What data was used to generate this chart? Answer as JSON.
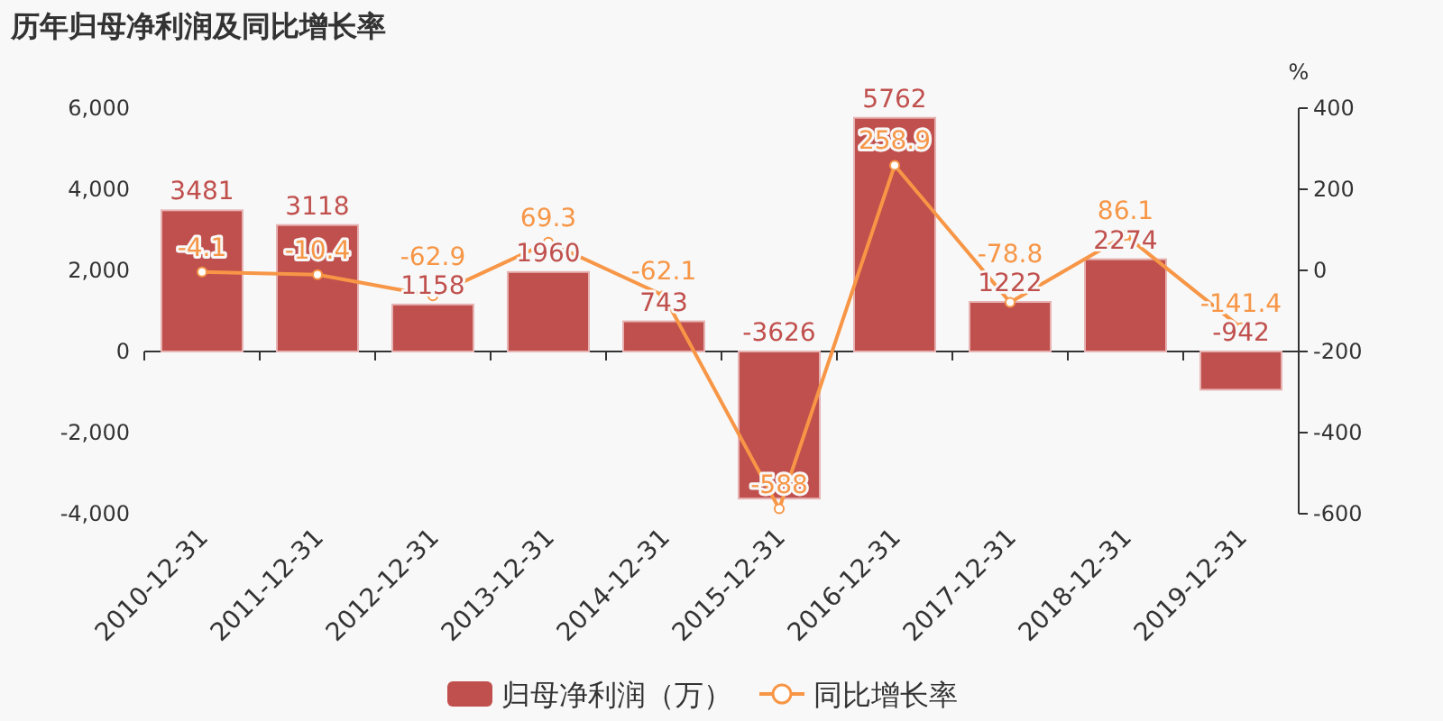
{
  "chart_data": {
    "type": "bar",
    "title": "历年归母净利润及同比增长率",
    "categories": [
      "2010-12-31",
      "2011-12-31",
      "2012-12-31",
      "2013-12-31",
      "2014-12-31",
      "2015-12-31",
      "2016-12-31",
      "2017-12-31",
      "2018-12-31",
      "2019-12-31"
    ],
    "series": [
      {
        "name": "归母净利润（万）",
        "color": "#c0504d",
        "values": [
          3481,
          3118,
          1158,
          1960,
          743,
          -3626,
          5762,
          1222,
          2274,
          -942
        ]
      },
      {
        "name": "同比增长率",
        "type": "line",
        "axis": "y2",
        "color": "#f79646",
        "marker": "circle",
        "values": [
          -4.1,
          -10.4,
          -62.9,
          69.3,
          -62.1,
          -588,
          258.9,
          -78.8,
          86.1,
          -141.4
        ]
      }
    ],
    "data_labels": true,
    "y2label": "%",
    "ylim": [
      -4000,
      6000
    ],
    "yticks": [
      {
        "value": -4000,
        "label": "-4,000"
      },
      {
        "value": -2000,
        "label": "-2,000"
      },
      0,
      {
        "value": 2000,
        "label": "2,000"
      },
      {
        "value": 4000,
        "label": "4,000"
      },
      {
        "value": 6000,
        "label": "6,000"
      }
    ],
    "y2lim": [
      -600,
      400
    ],
    "y2ticks": [
      -600,
      -400,
      -200,
      0,
      200,
      400
    ],
    "legend": "bottom"
  }
}
